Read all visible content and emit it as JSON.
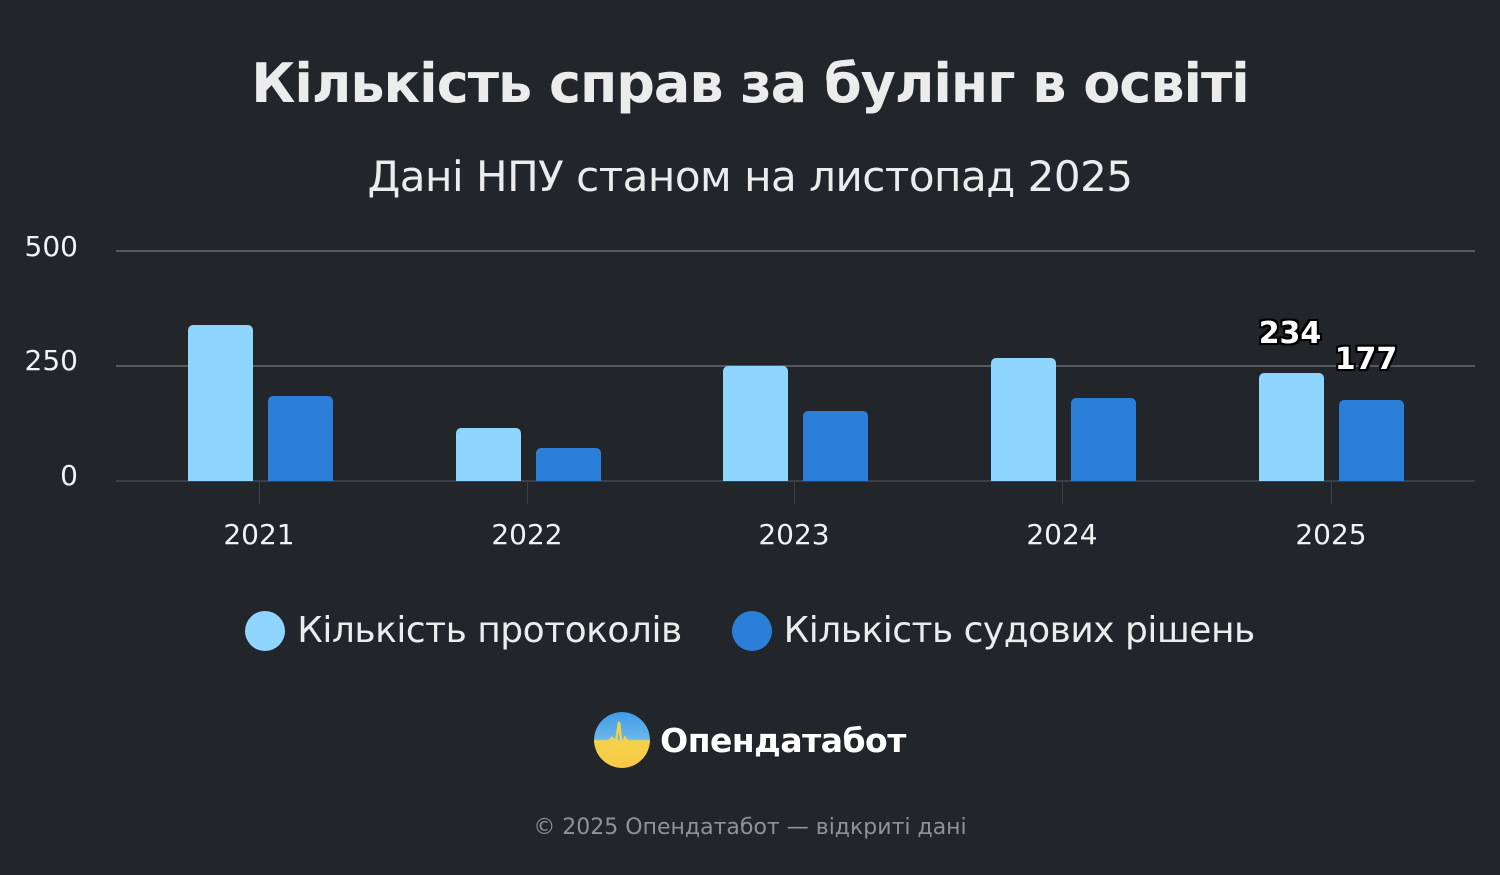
{
  "header": {
    "title": "Кількість справ за булінг в освіті",
    "subtitle": "Дані НПУ станом на листопад 2025"
  },
  "colors": {
    "background": "#222529",
    "series_1": "#8ed6ff",
    "series_2": "#2b7fd9",
    "gridline": "#55585c"
  },
  "axis": {
    "y_ticks": [
      "500",
      "250",
      "0"
    ],
    "x_ticks": [
      "2021",
      "2022",
      "2023",
      "2024",
      "2025"
    ]
  },
  "data_labels": {
    "protocols_2025": "234",
    "decisions_2025": "177"
  },
  "legend": {
    "items": [
      {
        "label": "Кількість протоколів",
        "color": "#8ed6ff"
      },
      {
        "label": "Кількість судових рішень",
        "color": "#2b7fd9"
      }
    ]
  },
  "brand": {
    "name": "Опендатабот",
    "logo_icon": "opendatabot-logo-icon"
  },
  "footer": {
    "text": "© 2025 Опендатабот — відкриті дані"
  },
  "chart_data": {
    "type": "bar",
    "title": "Кількість справ за булінг в освіті",
    "subtitle": "Дані НПУ станом на листопад 2025",
    "categories": [
      "2021",
      "2022",
      "2023",
      "2024",
      "2025"
    ],
    "series": [
      {
        "name": "Кількість протоколів",
        "color": "#8ed6ff",
        "values": [
          339,
          115,
          250,
          267,
          234
        ]
      },
      {
        "name": "Кількість судових рішень",
        "color": "#2b7fd9",
        "values": [
          185,
          72,
          152,
          180,
          177
        ]
      }
    ],
    "xlabel": "",
    "ylabel": "",
    "ylim": [
      0,
      500
    ],
    "y_ticks": [
      0,
      250,
      500
    ],
    "grid": true,
    "legend_position": "bottom",
    "annotations": [
      {
        "category": "2025",
        "series": "Кількість протоколів",
        "text": "234"
      },
      {
        "category": "2025",
        "series": "Кількість судових рішень",
        "text": "177"
      }
    ]
  }
}
